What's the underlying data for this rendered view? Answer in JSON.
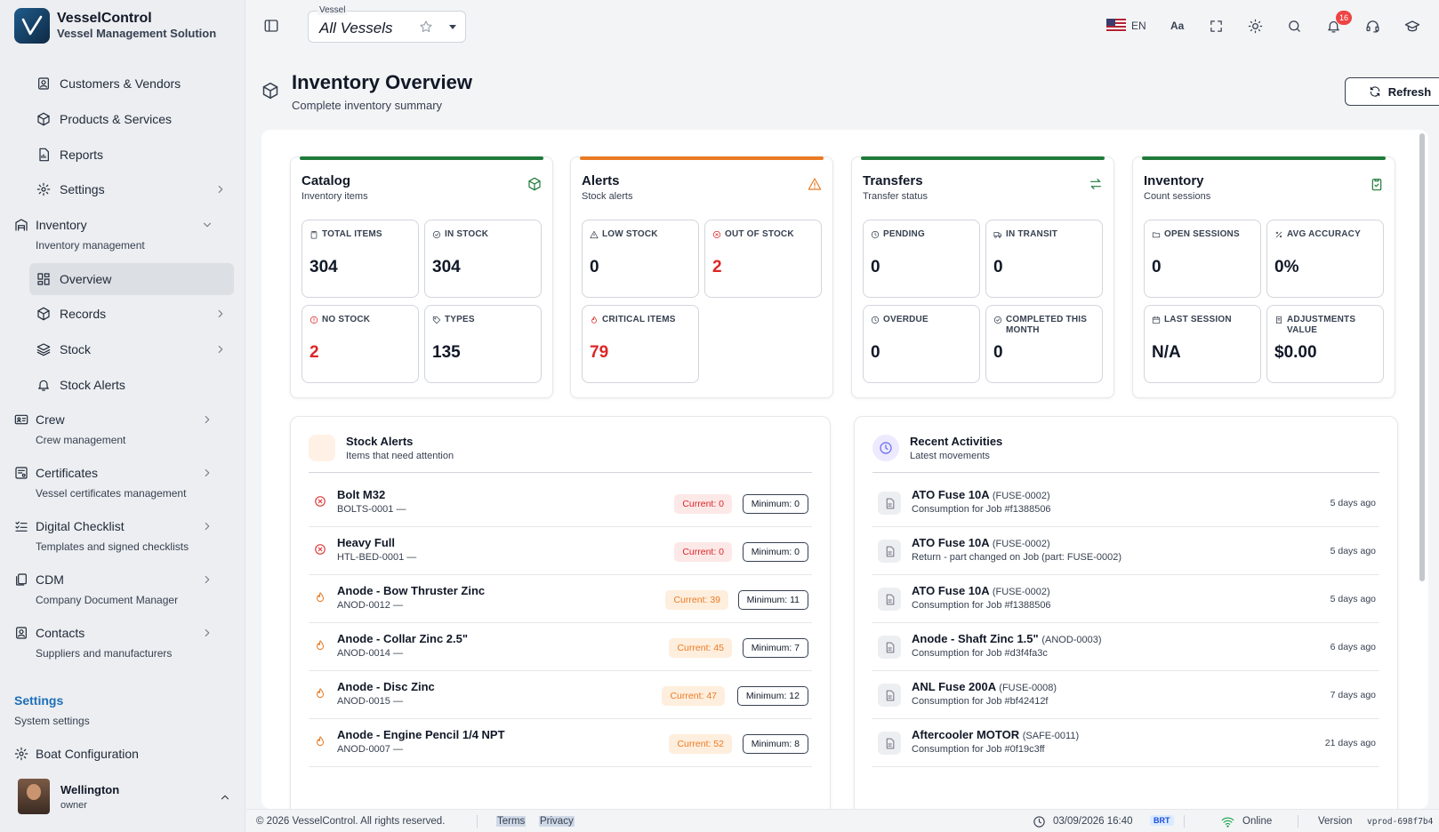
{
  "brand": {
    "title": "VesselControl",
    "subtitle": "Vessel Management Solution"
  },
  "sidebar": {
    "items": [
      {
        "label": "Customers & Vendors",
        "icon": "contact-card-icon"
      },
      {
        "label": "Products & Services",
        "icon": "box-icon"
      },
      {
        "label": "Reports",
        "icon": "report-icon"
      },
      {
        "label": "Settings",
        "icon": "gear-icon"
      }
    ],
    "inventory": {
      "label": "Inventory",
      "sub": "Inventory management"
    },
    "inventory_items": [
      {
        "label": "Overview"
      },
      {
        "label": "Records"
      },
      {
        "label": "Stock"
      },
      {
        "label": "Stock Alerts"
      }
    ],
    "categories": [
      {
        "label": "Crew",
        "sub": "Crew management"
      },
      {
        "label": "Certificates",
        "sub": "Vessel certificates management"
      },
      {
        "label": "Digital Checklist",
        "sub": "Templates and signed checklists"
      },
      {
        "label": "CDM",
        "sub": "Company Document Manager"
      },
      {
        "label": "Contacts",
        "sub": "Suppliers and manufacturers"
      }
    ],
    "settings_section": {
      "title": "Settings",
      "sub": "System settings"
    },
    "boat_config": "Boat Configuration",
    "user": {
      "name": "Wellington",
      "role": "owner"
    }
  },
  "topbar": {
    "vessel_label": "Vessel",
    "vessel_value": "All Vessels",
    "language": "EN",
    "font_size": "Aa",
    "notifications": "16"
  },
  "page": {
    "title": "Inventory Overview",
    "subtitle": "Complete inventory summary",
    "refresh": "Refresh"
  },
  "cards": [
    {
      "title": "Catalog",
      "sub": "Inventory items",
      "color": "#1f7a3a",
      "stats": [
        {
          "label": "TOTAL ITEMS",
          "value": "304"
        },
        {
          "label": "IN STOCK",
          "value": "304"
        },
        {
          "label": "NO STOCK",
          "value": "2"
        },
        {
          "label": "TYPES",
          "value": "135"
        }
      ]
    },
    {
      "title": "Alerts",
      "sub": "Stock alerts",
      "color": "#ea7b25",
      "stats": [
        {
          "label": "LOW STOCK",
          "value": "0"
        },
        {
          "label": "OUT OF STOCK",
          "value": "2"
        },
        {
          "label": "CRITICAL ITEMS",
          "value": "79"
        }
      ]
    },
    {
      "title": "Transfers",
      "sub": "Transfer status",
      "color": "#1f7a3a",
      "stats": [
        {
          "label": "PENDING",
          "value": "0"
        },
        {
          "label": "IN TRANSIT",
          "value": "0"
        },
        {
          "label": "OVERDUE",
          "value": "0"
        },
        {
          "label": "COMPLETED THIS MONTH",
          "value": "0"
        }
      ]
    },
    {
      "title": "Inventory",
      "sub": "Count sessions",
      "color": "#1f7a3a",
      "stats": [
        {
          "label": "OPEN SESSIONS",
          "value": "0"
        },
        {
          "label": "AVG ACCURACY",
          "value": "0%"
        },
        {
          "label": "LAST SESSION",
          "value": "N/A"
        },
        {
          "label": "ADJUSTMENTS VALUE",
          "value": "$0.00"
        }
      ]
    }
  ],
  "stock_alerts": {
    "title": "Stock Alerts",
    "sub": "Items that need attention",
    "rows": [
      {
        "name": "Bolt M32",
        "code": "BOLTS-0001 —",
        "current": "Current: 0",
        "minimum": "Minimum: 0",
        "level": "out"
      },
      {
        "name": "Heavy Full",
        "code": "HTL-BED-0001 —",
        "current": "Current: 0",
        "minimum": "Minimum: 0",
        "level": "out"
      },
      {
        "name": "Anode - Bow Thruster Zinc",
        "code": "ANOD-0012 —",
        "current": "Current: 39",
        "minimum": "Minimum: 11",
        "level": "critical"
      },
      {
        "name": "Anode - Collar Zinc 2.5\"",
        "code": "ANOD-0014 —",
        "current": "Current: 45",
        "minimum": "Minimum: 7",
        "level": "critical"
      },
      {
        "name": "Anode - Disc Zinc",
        "code": "ANOD-0015 —",
        "current": "Current: 47",
        "minimum": "Minimum: 12",
        "level": "critical"
      },
      {
        "name": "Anode - Engine Pencil 1/4 NPT",
        "code": "ANOD-0007 —",
        "current": "Current: 52",
        "minimum": "Minimum: 8",
        "level": "critical"
      }
    ]
  },
  "recent_activities": {
    "title": "Recent Activities",
    "sub": "Latest movements",
    "rows": [
      {
        "name": "ATO Fuse 10A",
        "part": "(FUSE-0002)",
        "desc": "Consumption for Job #f1388506",
        "time": "5 days ago"
      },
      {
        "name": "ATO Fuse 10A",
        "part": "(FUSE-0002)",
        "desc": "Return - part changed on Job (part: FUSE-0002)",
        "time": "5 days ago"
      },
      {
        "name": "ATO Fuse 10A",
        "part": "(FUSE-0002)",
        "desc": "Consumption for Job #f1388506",
        "time": "5 days ago"
      },
      {
        "name": "Anode - Shaft Zinc 1.5\"",
        "part": "(ANOD-0003)",
        "desc": "Consumption for Job #d3f4fa3c",
        "time": "6 days ago"
      },
      {
        "name": "ANL Fuse 200A",
        "part": "(FUSE-0008)",
        "desc": "Consumption for Job #bf42412f",
        "time": "7 days ago"
      },
      {
        "name": "Aftercooler MOTOR",
        "part": "(SAFE-0011)",
        "desc": "Consumption for Job #0f19c3ff",
        "time": "21 days ago"
      }
    ]
  },
  "footer": {
    "copyright": "© 2026 VesselControl. All rights reserved.",
    "terms": "Terms",
    "privacy": "Privacy",
    "datetime": "03/09/2026 16:40",
    "tz": "BRT",
    "status": "Online",
    "version_label": "Version",
    "version": "vprod-698f7b4"
  }
}
